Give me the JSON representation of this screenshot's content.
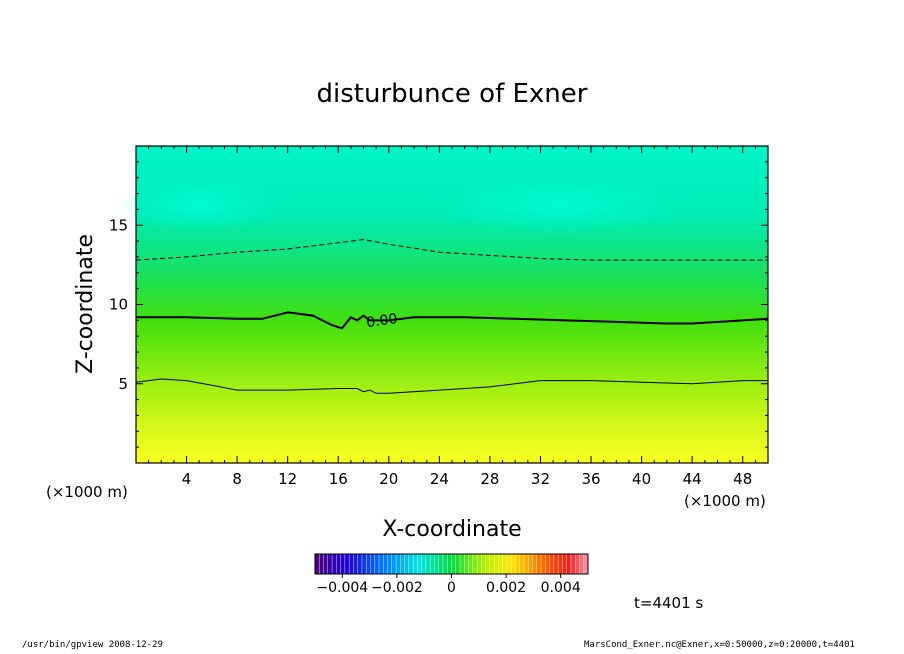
{
  "chart_data": {
    "type": "heatmap",
    "title": "disturbunce of Exner",
    "xlabel": "X-coordinate",
    "ylabel": "Z-coordinate",
    "x_unit_left": "(×1000 m)",
    "x_unit_right": "(×1000 m)",
    "xlim": [
      0,
      50
    ],
    "ylim": [
      0,
      20
    ],
    "x_ticks": [
      "4",
      "8",
      "12",
      "16",
      "20",
      "24",
      "28",
      "32",
      "36",
      "40",
      "44",
      "48"
    ],
    "y_ticks": [
      "5",
      "10",
      "15"
    ],
    "contour_labels": [
      {
        "text": "0.00",
        "x": 19.5,
        "z": 8.7
      }
    ],
    "contours": [
      {
        "level": "negative",
        "style": "dashed",
        "points": [
          [
            0,
            12.8
          ],
          [
            4,
            13.0
          ],
          [
            8,
            13.3
          ],
          [
            12,
            13.5
          ],
          [
            16,
            13.9
          ],
          [
            18,
            14.1
          ],
          [
            20,
            13.8
          ],
          [
            24,
            13.3
          ],
          [
            28,
            13.1
          ],
          [
            32,
            12.9
          ],
          [
            36,
            12.8
          ],
          [
            40,
            12.8
          ],
          [
            44,
            12.8
          ],
          [
            48,
            12.8
          ],
          [
            50,
            12.8
          ]
        ]
      },
      {
        "level": "0.00",
        "style": "bold",
        "points": [
          [
            0,
            9.2
          ],
          [
            4,
            9.2
          ],
          [
            8,
            9.1
          ],
          [
            10,
            9.1
          ],
          [
            12,
            9.5
          ],
          [
            14,
            9.3
          ],
          [
            15.5,
            8.7
          ],
          [
            16.3,
            8.5
          ],
          [
            17,
            9.2
          ],
          [
            17.5,
            9.0
          ],
          [
            18,
            9.3
          ],
          [
            18.5,
            9.0
          ],
          [
            20,
            9.0
          ],
          [
            22,
            9.2
          ],
          [
            26,
            9.2
          ],
          [
            30,
            9.1
          ],
          [
            34,
            9.0
          ],
          [
            38,
            8.9
          ],
          [
            42,
            8.8
          ],
          [
            44,
            8.8
          ],
          [
            48,
            9.0
          ],
          [
            50,
            9.1
          ]
        ]
      },
      {
        "level": "positive",
        "style": "thin",
        "points": [
          [
            0,
            5.1
          ],
          [
            2,
            5.3
          ],
          [
            4,
            5.2
          ],
          [
            6,
            4.9
          ],
          [
            8,
            4.6
          ],
          [
            12,
            4.6
          ],
          [
            16,
            4.7
          ],
          [
            17.5,
            4.7
          ],
          [
            18,
            4.5
          ],
          [
            18.5,
            4.6
          ],
          [
            19,
            4.4
          ],
          [
            20,
            4.4
          ],
          [
            24,
            4.6
          ],
          [
            28,
            4.8
          ],
          [
            32,
            5.2
          ],
          [
            36,
            5.2
          ],
          [
            40,
            5.1
          ],
          [
            44,
            5.0
          ],
          [
            48,
            5.2
          ],
          [
            50,
            5.2
          ]
        ]
      }
    ],
    "colorbar": {
      "range": [
        -0.005,
        0.005
      ],
      "tick_labels": [
        "−0.004",
        "−0.002",
        "0",
        "0.002",
        "0.004"
      ],
      "tick_values": [
        -0.004,
        -0.002,
        0,
        0.002,
        0.004
      ]
    },
    "field": {
      "top_color": "#00f0c0",
      "bottom_color": "#f8ff20",
      "value_range_shown": [
        -0.0015,
        0.002
      ]
    }
  },
  "time_label": "t=4401 s",
  "footer_left": "/usr/bin/gpview   2008-12-29",
  "footer_right": "MarsCond_Exner.nc@Exner,x=0:50000,z=0:20000,t=4401"
}
